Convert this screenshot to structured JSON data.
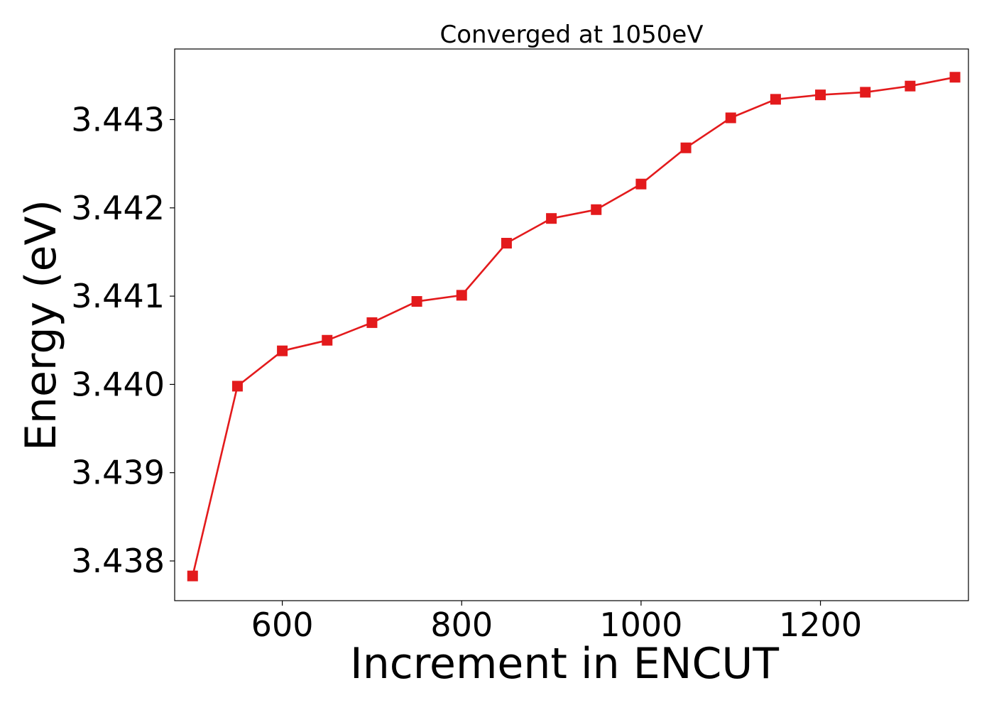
{
  "chart_data": {
    "type": "line",
    "title": "Converged at 1050eV",
    "xlabel": "Increment in ENCUT",
    "ylabel": "Energy (eV)",
    "xlim": [
      480,
      1365
    ],
    "ylim": [
      3.43755,
      3.4438
    ],
    "xticks": [
      600,
      800,
      1000,
      1200
    ],
    "yticks": [
      3.438,
      3.439,
      3.44,
      3.441,
      3.442,
      3.443
    ],
    "xtick_labels": [
      "600",
      "800",
      "1000",
      "1200"
    ],
    "ytick_labels": [
      "3.438",
      "3.439",
      "3.440",
      "3.441",
      "3.442",
      "3.443"
    ],
    "grid": false,
    "series": [
      {
        "color": "#e31a1c",
        "marker": "square",
        "x": [
          500,
          550,
          600,
          650,
          700,
          750,
          800,
          850,
          900,
          950,
          1000,
          1050,
          1100,
          1150,
          1200,
          1250,
          1300,
          1350
        ],
        "y": [
          3.43783,
          3.43998,
          3.44038,
          3.4405,
          3.4407,
          3.44094,
          3.44101,
          3.4416,
          3.44188,
          3.44198,
          3.44227,
          3.44268,
          3.44302,
          3.44323,
          3.44328,
          3.44331,
          3.44338,
          3.44348
        ]
      }
    ]
  }
}
